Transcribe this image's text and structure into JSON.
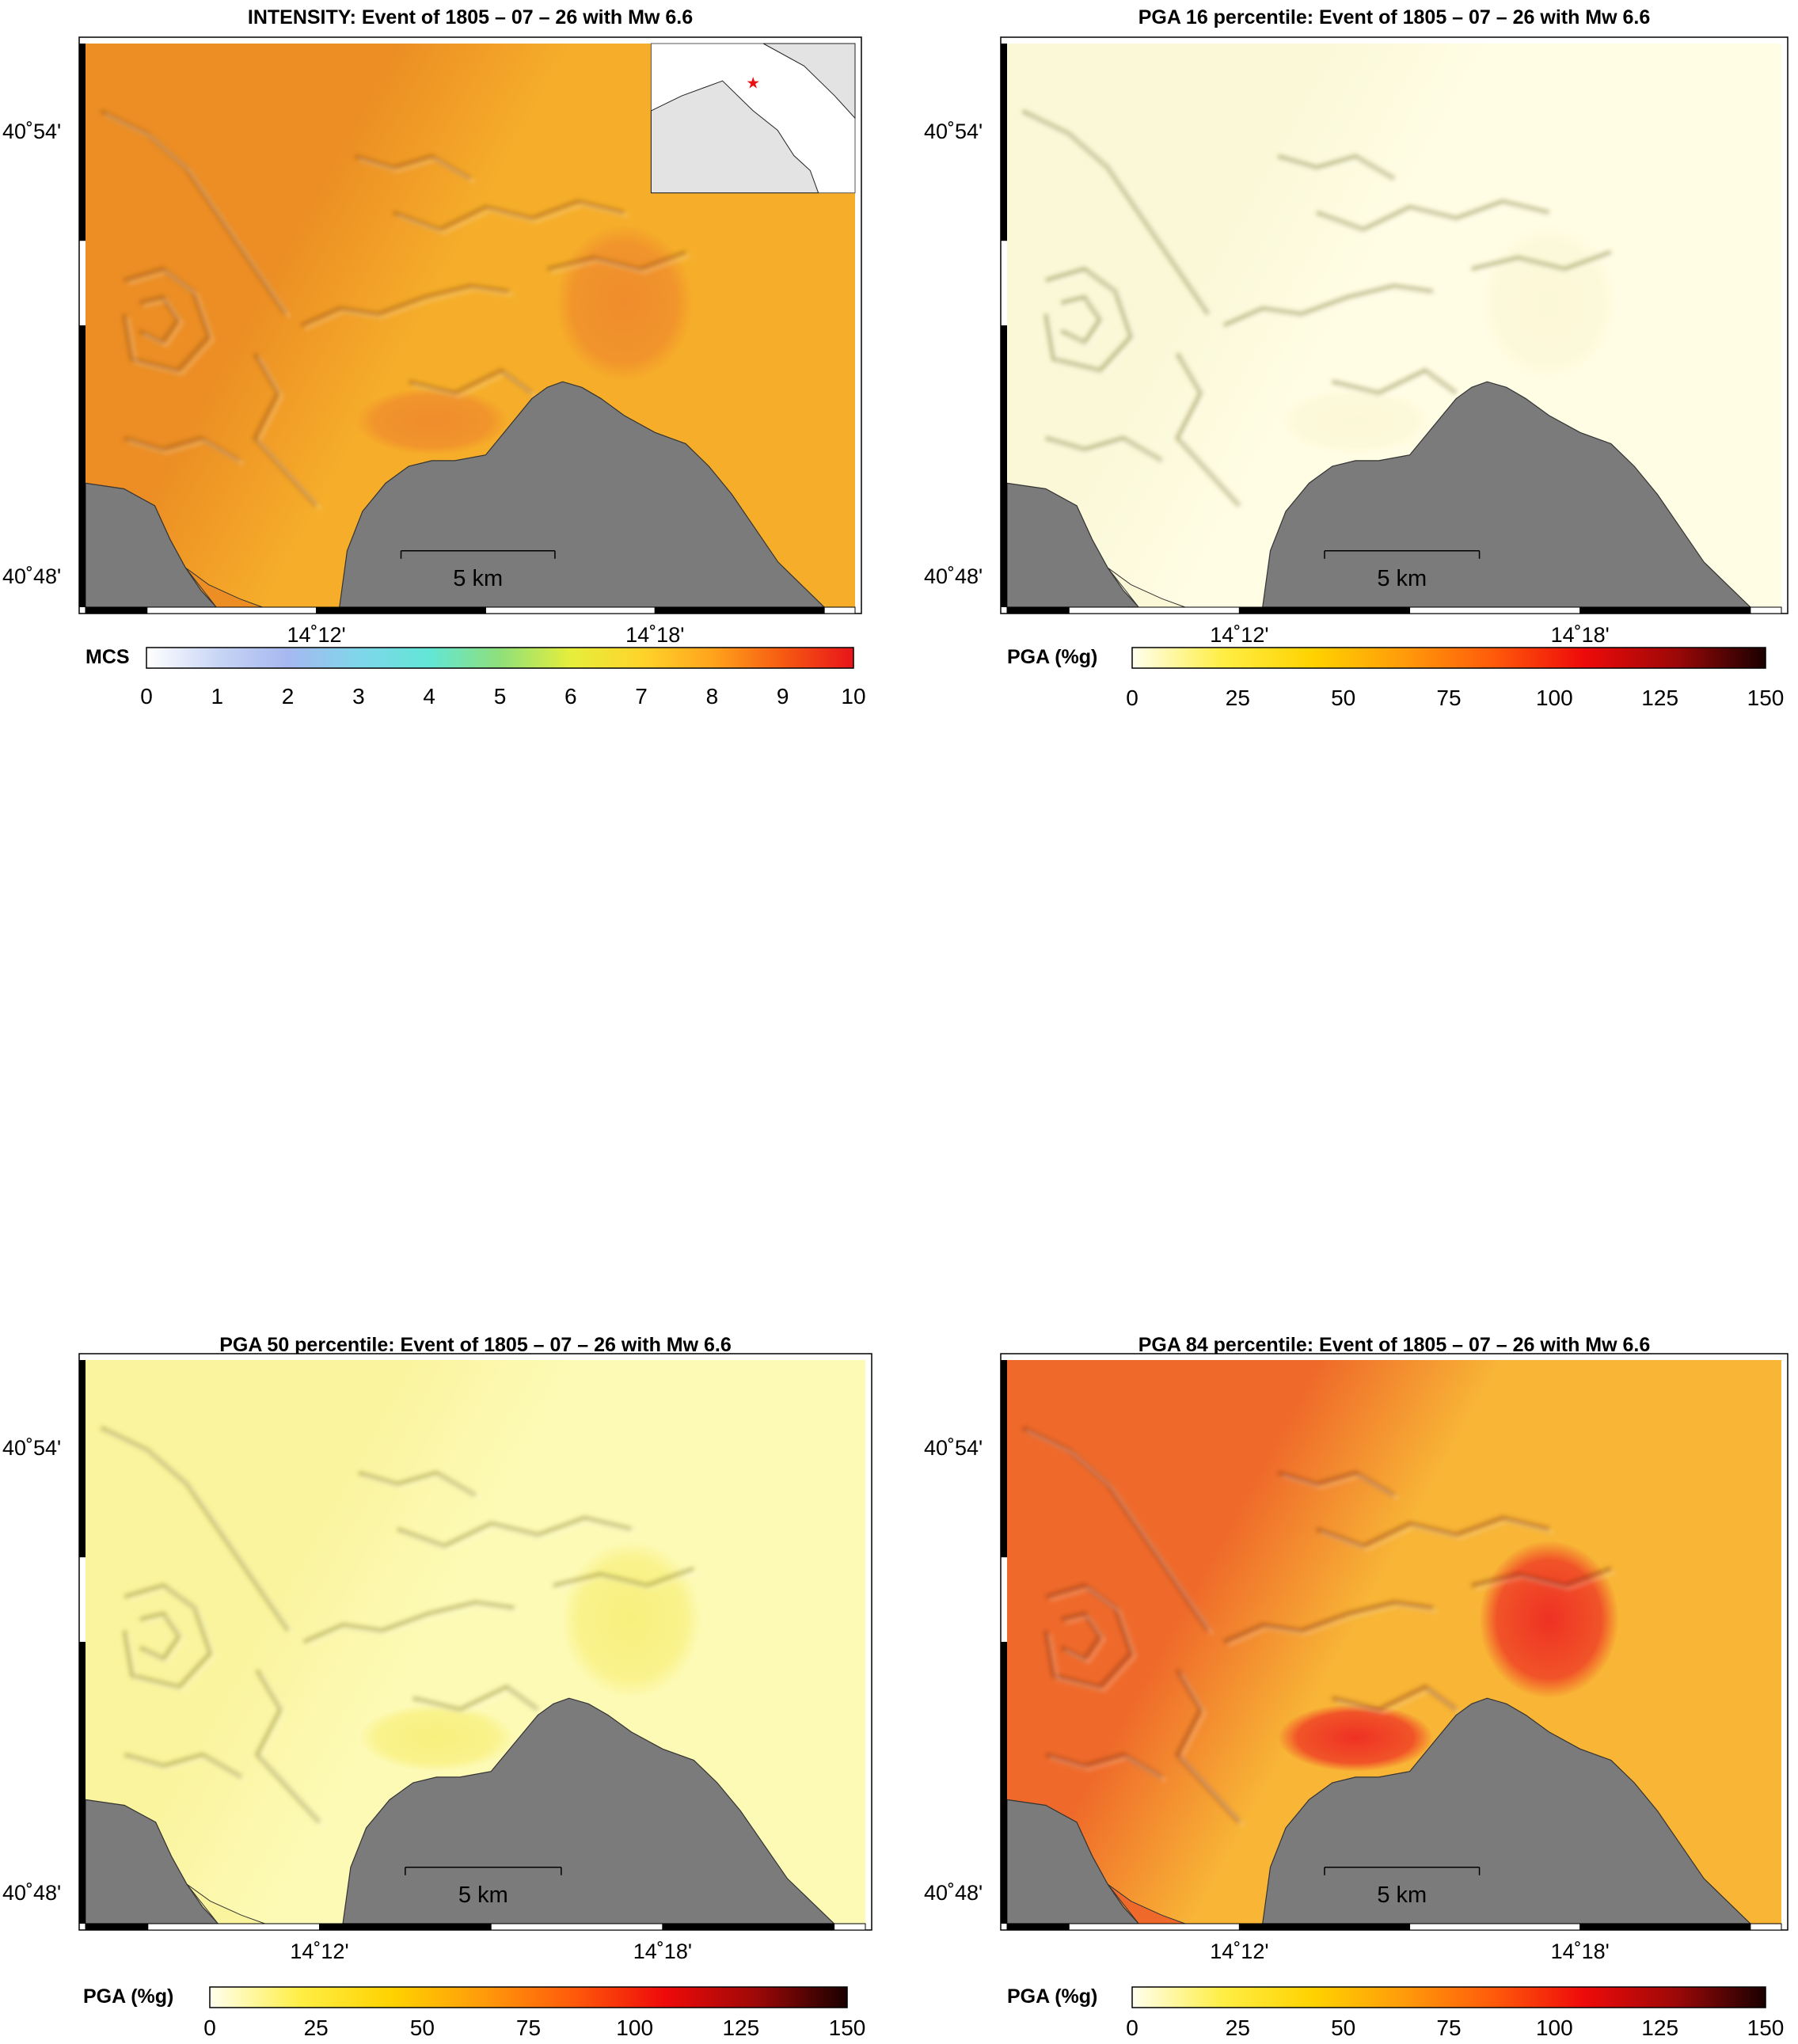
{
  "panels": [
    {
      "id": "intensity",
      "title": "INTENSITY: Event of 1805 – 07 – 26 with Mw 6.6",
      "colorbar_label": "MCS",
      "colorbar_ticks": [
        "0",
        "1",
        "2",
        "3",
        "4",
        "5",
        "6",
        "7",
        "8",
        "9",
        "10"
      ],
      "colorbar_colors": [
        "#ffffff",
        "#c9d6f5",
        "#a6b8f0",
        "#7fd6ea",
        "#62e6d6",
        "#8fe07a",
        "#e6ee3c",
        "#ffd42a",
        "#ffa41c",
        "#f65a12",
        "#e8141a"
      ],
      "land_base": "#f6ae2a",
      "land_west": "#ec8e24",
      "hot_zone": "#ef8a2c",
      "shade": "#8a4a12",
      "has_inset": true
    },
    {
      "id": "pga16",
      "title": "PGA 16 percentile: Event of 1805 – 07 – 26 with Mw 6.6",
      "colorbar_label": "PGA (%g)",
      "colorbar_ticks": [
        "0",
        "25",
        "50",
        "75",
        "100",
        "125",
        "150"
      ],
      "colorbar_colors": [
        "#ffffef",
        "#ffee44",
        "#ffd200",
        "#ff9b0a",
        "#ff5a0a",
        "#ee0a0a",
        "#9e0808",
        "#1a0000"
      ],
      "land_base": "#fffde4",
      "land_west": "#fbf8d8",
      "hot_zone": "#fbf7d6",
      "shade": "#6f6a20",
      "has_inset": false
    },
    {
      "id": "pga50",
      "title": "PGA 50 percentile: Event of 1805 – 07 – 26 with Mw 6.6",
      "colorbar_label": "PGA (%g)",
      "colorbar_ticks": [
        "0",
        "25",
        "50",
        "75",
        "100",
        "125",
        "150"
      ],
      "colorbar_colors": [
        "#ffffef",
        "#ffee44",
        "#ffd200",
        "#ff9b0a",
        "#ff5a0a",
        "#ee0a0a",
        "#9e0808",
        "#1a0000"
      ],
      "land_base": "#fdfab6",
      "land_west": "#faf49e",
      "hot_zone": "#f8ef7a",
      "shade": "#7d7420",
      "has_inset": false
    },
    {
      "id": "pga84",
      "title": "PGA 84 percentile: Event of 1805 – 07 – 26 with Mw 6.6",
      "colorbar_label": "PGA (%g)",
      "colorbar_ticks": [
        "0",
        "25",
        "50",
        "75",
        "100",
        "125",
        "150"
      ],
      "colorbar_colors": [
        "#ffffef",
        "#ffee44",
        "#ffd200",
        "#ff9b0a",
        "#ff5a0a",
        "#ee0a0a",
        "#9e0808",
        "#1a0000"
      ],
      "land_base": "#f8b536",
      "land_west": "#ef6a2a",
      "hot_zone": "#ee2a22",
      "shade": "#7a2a10",
      "has_inset": false
    }
  ],
  "map": {
    "lat_labels": [
      "40˚54'",
      "40˚48'"
    ],
    "lon_labels": [
      "14˚12'",
      "14˚18'"
    ],
    "scale_label": "5 km",
    "sea_color": "#7b7b7b",
    "inset_sea": "#ffffff",
    "inset_land": "#e3e3e3",
    "epicenter_color": "#e81010"
  }
}
